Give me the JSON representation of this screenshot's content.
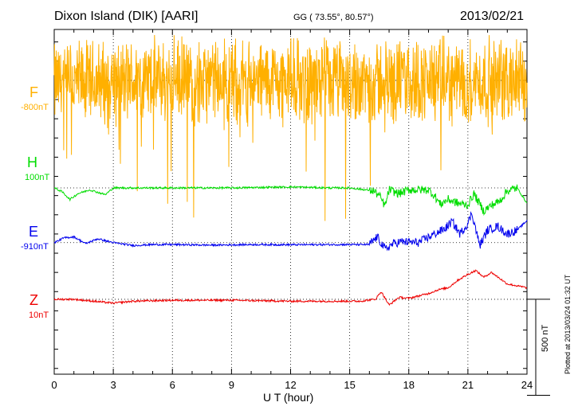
{
  "header": {
    "title": "Dixon Island (DIK)  [AARI]",
    "coords": "GG ( 73.55°,  80.57°)",
    "date": "2013/02/21"
  },
  "footnote": "Plotted at 2013/03/24 01:32 UT",
  "chart_data": {
    "type": "line",
    "title": "Dixon Island (DIK)  [AARI]",
    "xlabel": "U T (hour)",
    "x_range": [
      0,
      24
    ],
    "x_ticks": [
      "0",
      "3",
      "6",
      "9",
      "12",
      "15",
      "18",
      "21",
      "24"
    ],
    "scale_label": "500 nT",
    "scale_nT": 500,
    "series": [
      {
        "name": "F",
        "baseline_label": "-800nT",
        "color": "#ffb000",
        "kind": "noisy",
        "offset_nT": 0,
        "amplitude_nT": 260,
        "keypoints": [
          [
            0,
            -20
          ],
          [
            3,
            -10
          ],
          [
            6,
            0
          ],
          [
            9,
            -15
          ],
          [
            12,
            0
          ],
          [
            15,
            -10
          ],
          [
            18,
            0
          ],
          [
            21,
            -10
          ],
          [
            24,
            0
          ]
        ]
      },
      {
        "name": "H",
        "baseline_label": "100nT",
        "color": "#00dd00",
        "kind": "smooth",
        "offset_nT": -560,
        "keypoints": [
          [
            0,
            -560
          ],
          [
            0.4,
            -580
          ],
          [
            0.8,
            -620
          ],
          [
            1.2,
            -590
          ],
          [
            1.8,
            -570
          ],
          [
            2.6,
            -595
          ],
          [
            3,
            -560
          ],
          [
            4,
            -560
          ],
          [
            6,
            -560
          ],
          [
            9,
            -560
          ],
          [
            12,
            -555
          ],
          [
            14,
            -560
          ],
          [
            15,
            -560
          ],
          [
            16.2,
            -575
          ],
          [
            16.5,
            -600
          ],
          [
            16.8,
            -655
          ],
          [
            17,
            -570
          ],
          [
            17.5,
            -590
          ],
          [
            18,
            -570
          ],
          [
            19,
            -570
          ],
          [
            19.3,
            -600
          ],
          [
            19.6,
            -645
          ],
          [
            20,
            -620
          ],
          [
            20.5,
            -640
          ],
          [
            21,
            -650
          ],
          [
            21.3,
            -590
          ],
          [
            21.8,
            -680
          ],
          [
            22.2,
            -650
          ],
          [
            22.6,
            -630
          ],
          [
            23,
            -575
          ],
          [
            23.5,
            -560
          ],
          [
            24,
            -640
          ]
        ]
      },
      {
        "name": "E",
        "baseline_label": "-910nT",
        "color": "#0000ee",
        "kind": "smooth",
        "offset_nT": -845,
        "keypoints": [
          [
            0,
            -845
          ],
          [
            0.5,
            -820
          ],
          [
            1,
            -815
          ],
          [
            1.6,
            -850
          ],
          [
            2.2,
            -825
          ],
          [
            3,
            -845
          ],
          [
            4,
            -860
          ],
          [
            5,
            -855
          ],
          [
            6,
            -855
          ],
          [
            8,
            -858
          ],
          [
            10,
            -855
          ],
          [
            12,
            -856
          ],
          [
            14,
            -855
          ],
          [
            16,
            -855
          ],
          [
            16.4,
            -815
          ],
          [
            16.8,
            -880
          ],
          [
            17.2,
            -850
          ],
          [
            17.6,
            -840
          ],
          [
            18.5,
            -845
          ],
          [
            19.2,
            -805
          ],
          [
            19.8,
            -775
          ],
          [
            20.2,
            -735
          ],
          [
            20.6,
            -800
          ],
          [
            21,
            -745
          ],
          [
            21.2,
            -690
          ],
          [
            21.6,
            -860
          ],
          [
            22,
            -780
          ],
          [
            22.5,
            -760
          ],
          [
            23,
            -800
          ],
          [
            23.5,
            -780
          ],
          [
            24,
            -730
          ]
        ]
      },
      {
        "name": "Z",
        "baseline_label": "10nT",
        "color": "#ee0000",
        "kind": "smooth",
        "offset_nT": -1140,
        "keypoints": [
          [
            0,
            -1140
          ],
          [
            1,
            -1140
          ],
          [
            2,
            -1150
          ],
          [
            3,
            -1160
          ],
          [
            4,
            -1150
          ],
          [
            6,
            -1145
          ],
          [
            9,
            -1145
          ],
          [
            12,
            -1150
          ],
          [
            14,
            -1150
          ],
          [
            15.5,
            -1150
          ],
          [
            16.3,
            -1140
          ],
          [
            16.6,
            -1100
          ],
          [
            17,
            -1170
          ],
          [
            17.5,
            -1130
          ],
          [
            18,
            -1135
          ],
          [
            19,
            -1110
          ],
          [
            19.5,
            -1090
          ],
          [
            20,
            -1080
          ],
          [
            20.5,
            -1040
          ],
          [
            21,
            -1010
          ],
          [
            21.4,
            -990
          ],
          [
            21.8,
            -1025
          ],
          [
            22.2,
            -1000
          ],
          [
            23,
            -1060
          ],
          [
            24,
            -1080
          ]
        ]
      }
    ],
    "y_range": [
      -1530,
      265
    ]
  }
}
